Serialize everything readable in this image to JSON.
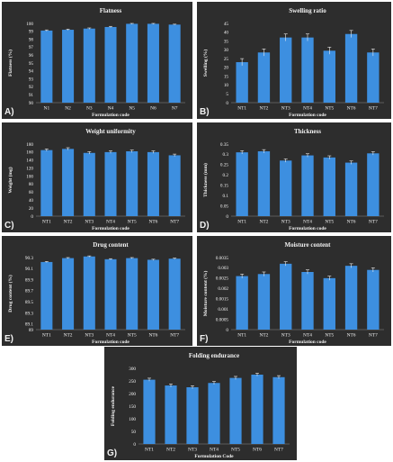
{
  "chart_data": [
    {
      "type": "bar",
      "letter": "A)",
      "title": "Flatness",
      "xlabel": "Formulation code",
      "ylabel": "Flatness (%)",
      "categories": [
        "N1",
        "N2",
        "N3",
        "N4",
        "N5",
        "N6",
        "N7"
      ],
      "values": [
        99.1,
        99.2,
        99.35,
        99.55,
        99.95,
        99.95,
        99.85
      ],
      "errors": [
        0.08,
        0.08,
        0.08,
        0.08,
        0.05,
        0.05,
        0.05
      ],
      "ylim": [
        90,
        100
      ],
      "yticks": [
        "90",
        "91",
        "92",
        "93",
        "94",
        "95",
        "96",
        "97",
        "98",
        "99",
        "100"
      ],
      "ytick_values": [
        90,
        91,
        92,
        93,
        94,
        95,
        96,
        97,
        98,
        99,
        100
      ]
    },
    {
      "type": "bar",
      "letter": "B)",
      "title": "Swelling ratio",
      "xlabel": "Formulation code",
      "ylabel": "Swelling (%)",
      "categories": [
        "NT1",
        "NT2",
        "NT3",
        "NT4",
        "NT5",
        "NT6",
        "NT7"
      ],
      "values": [
        23,
        28.5,
        37,
        37,
        29.5,
        39,
        28.5
      ],
      "errors": [
        2,
        2,
        2,
        2,
        2,
        2,
        2
      ],
      "ylim": [
        0,
        45
      ],
      "yticks": [
        "0",
        "5",
        "10",
        "15",
        "20",
        "25",
        "30",
        "35",
        "40",
        "45"
      ],
      "ytick_values": [
        0,
        5,
        10,
        15,
        20,
        25,
        30,
        35,
        40,
        45
      ]
    },
    {
      "type": "bar",
      "letter": "C)",
      "title": "Weight uniformity",
      "xlabel": "Formulation code",
      "ylabel": "Weight (mg)",
      "categories": [
        "NT1",
        "NT2",
        "NT3",
        "NT4",
        "NT5",
        "NT6",
        "NT7"
      ],
      "values": [
        165,
        168,
        158,
        160,
        162,
        160,
        152
      ],
      "errors": [
        3,
        3,
        3,
        3,
        3,
        3,
        3
      ],
      "ylim": [
        0,
        180
      ],
      "yticks": [
        "0",
        "20",
        "40",
        "60",
        "80",
        "100",
        "120",
        "140",
        "160",
        "180"
      ],
      "ytick_values": [
        0,
        20,
        40,
        60,
        80,
        100,
        120,
        140,
        160,
        180
      ]
    },
    {
      "type": "bar",
      "letter": "D)",
      "title": "Thickness",
      "xlabel": "Formulation code",
      "ylabel": "Thickness (mm)",
      "categories": [
        "NT1",
        "NT2",
        "NT3",
        "NT4",
        "NT5",
        "NT6",
        "NT7"
      ],
      "values": [
        0.31,
        0.315,
        0.27,
        0.295,
        0.285,
        0.26,
        0.305
      ],
      "errors": [
        0.008,
        0.008,
        0.008,
        0.008,
        0.008,
        0.008,
        0.008
      ],
      "ylim": [
        0,
        0.35
      ],
      "yticks": [
        "0",
        "0.05",
        "0.1",
        "0.15",
        "0.2",
        "0.25",
        "0.3",
        "0.35"
      ],
      "ytick_values": [
        0,
        0.05,
        0.1,
        0.15,
        0.2,
        0.25,
        0.3,
        0.35
      ]
    },
    {
      "type": "bar",
      "letter": "E)",
      "title": "Drug content",
      "xlabel": "Formulation code",
      "ylabel": "Drug content (%)",
      "categories": [
        "NT1",
        "NT2",
        "NT3",
        "NT4",
        "NT5",
        "NT6",
        "NT7"
      ],
      "values": [
        90.22,
        90.29,
        90.32,
        90.27,
        90.29,
        90.26,
        90.28
      ],
      "errors": [
        0.01,
        0.01,
        0.01,
        0.01,
        0.01,
        0.01,
        0.01
      ],
      "ylim": [
        89,
        90.3
      ],
      "yticks": [
        "89",
        "89.1",
        "89.3",
        "89.5",
        "89.7",
        "89.9",
        "90.1",
        "90.3"
      ],
      "ytick_values": [
        89,
        89.1,
        89.3,
        89.5,
        89.7,
        89.9,
        90.1,
        90.3
      ]
    },
    {
      "type": "bar",
      "letter": "F)",
      "title": "Moisture content",
      "xlabel": "Formulation code",
      "ylabel": "Moisture content (%)",
      "categories": [
        "NT1",
        "NT2",
        "NT3",
        "NT4",
        "NT5",
        "NT6",
        "NT7"
      ],
      "values": [
        0.0026,
        0.0027,
        0.0032,
        0.0028,
        0.0025,
        0.0031,
        0.0029
      ],
      "errors": [
        0.0001,
        0.0001,
        0.0001,
        0.0001,
        0.0001,
        0.0001,
        0.0001
      ],
      "ylim": [
        0,
        0.0035
      ],
      "yticks": [
        "0",
        "0.0005",
        "0.001",
        "0.0015",
        "0.002",
        "0.0025",
        "0.003",
        "0.0035"
      ],
      "ytick_values": [
        0,
        0.0005,
        0.001,
        0.0015,
        0.002,
        0.0025,
        0.003,
        0.0035
      ]
    },
    {
      "type": "bar",
      "letter": "G)",
      "title": "Folding endurance",
      "xlabel": "Formulation Code",
      "ylabel": "Folding endurance",
      "categories": [
        "NT1",
        "NT2",
        "NT3",
        "NT4",
        "NT5",
        "NT6",
        "NT7"
      ],
      "values": [
        255,
        232,
        225,
        242,
        262,
        275,
        265
      ],
      "errors": [
        6,
        6,
        6,
        6,
        6,
        6,
        6
      ],
      "ylim": [
        0,
        300
      ],
      "yticks": [
        "0",
        "50",
        "100",
        "150",
        "200",
        "250",
        "300"
      ],
      "ytick_values": [
        0,
        50,
        100,
        150,
        200,
        250,
        300
      ]
    }
  ],
  "colors": {
    "bar": "#3d8fe0",
    "background": "#2d2d2d",
    "text": "#f2f2f2"
  }
}
